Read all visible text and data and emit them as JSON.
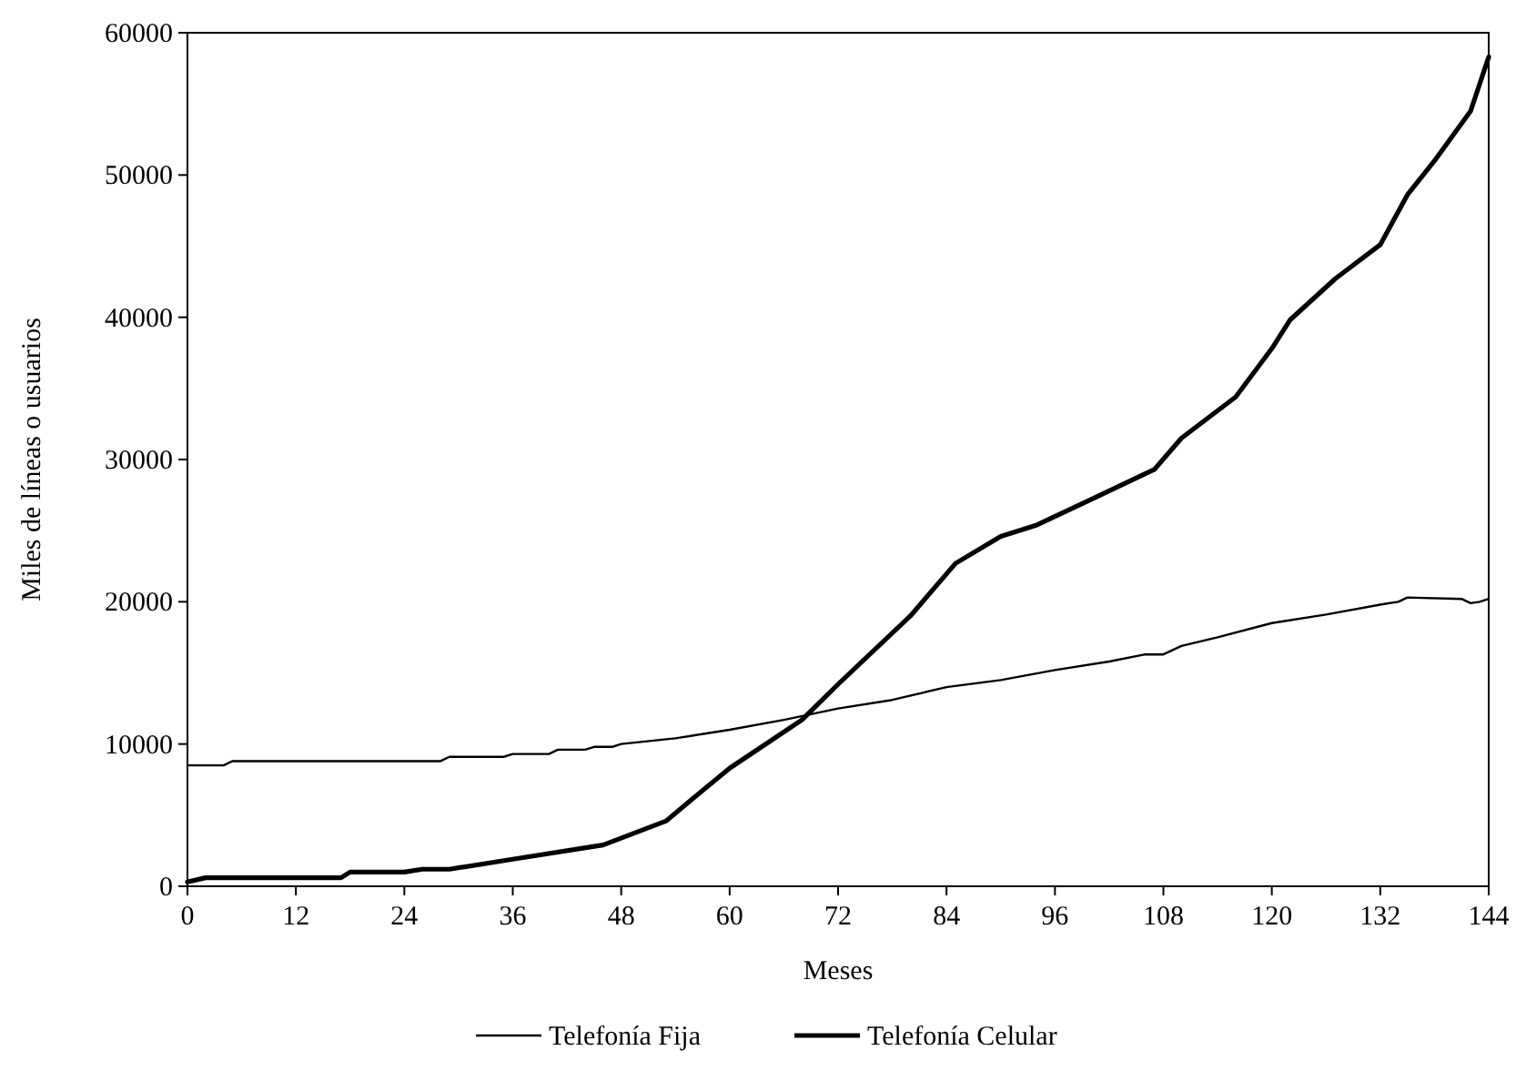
{
  "chart_data": {
    "type": "line",
    "xlabel": "Meses",
    "ylabel": "Miles de líneas o usuarios",
    "xlim": [
      0,
      144
    ],
    "xticks": [
      0,
      12,
      24,
      36,
      48,
      60,
      72,
      84,
      96,
      108,
      120,
      132,
      144
    ],
    "ylim": [
      0,
      60000
    ],
    "yticks": [
      0,
      10000,
      20000,
      30000,
      40000,
      50000,
      60000
    ],
    "legend": "bottom",
    "grid": false,
    "marker": "none",
    "line_style": "solid",
    "series": [
      {
        "name": "Telefonía Fija",
        "color": "#000000",
        "x": [
          0,
          4,
          5,
          28,
          29,
          35,
          36,
          40,
          41,
          44,
          45,
          47,
          48,
          54,
          60,
          66,
          72,
          78,
          84,
          90,
          96,
          102,
          106,
          108,
          110,
          114,
          120,
          126,
          132,
          134,
          135,
          141,
          142,
          143,
          144
        ],
        "values": [
          8500,
          8500,
          8800,
          8800,
          9100,
          9100,
          9300,
          9300,
          9600,
          9600,
          9800,
          9800,
          10000,
          10400,
          11000,
          11700,
          12500,
          13100,
          14000,
          14500,
          15200,
          15800,
          16300,
          16300,
          16900,
          17500,
          18500,
          19100,
          19800,
          20000,
          20300,
          20200,
          19900,
          20000,
          20200
        ]
      },
      {
        "name": "Telefonía Celular",
        "color": "#000000",
        "x": [
          0,
          2,
          17,
          18,
          24,
          26,
          29,
          36,
          46,
          53,
          56,
          60,
          68,
          72,
          80,
          85,
          90,
          94,
          100,
          107,
          110,
          116,
          120,
          122,
          127,
          132,
          135,
          138,
          142,
          144
        ],
        "values": [
          300,
          600,
          600,
          1000,
          1000,
          1200,
          1200,
          1900,
          2900,
          4600,
          6200,
          8300,
          11700,
          14200,
          19000,
          22700,
          24600,
          25400,
          27200,
          29300,
          31500,
          34400,
          37800,
          39800,
          42700,
          45100,
          48600,
          51000,
          54500,
          58300
        ]
      }
    ]
  }
}
